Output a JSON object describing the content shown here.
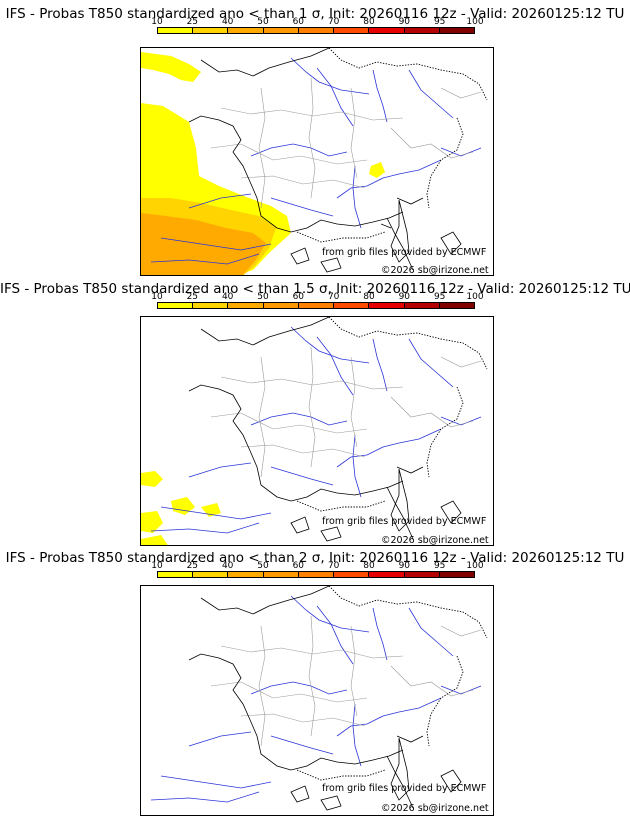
{
  "scale": {
    "ticks": [
      "10",
      "25",
      "40",
      "50",
      "60",
      "70",
      "80",
      "90",
      "95",
      "100"
    ],
    "colors": [
      "#ffff00",
      "#ffd400",
      "#ffaa00",
      "#ff9900",
      "#ff7f00",
      "#ff4c00",
      "#e60000",
      "#b30000",
      "#800000"
    ]
  },
  "panels": [
    {
      "title": "IFS - Probas T850  standardized ano < than 1 σ, Init: 20260116 12z - Valid: 20260125:12 TU",
      "source": "from grib files provided by ECMWF",
      "copyright": "©2026 sb@irizone.net"
    },
    {
      "title": "IFS - Probas T850  standardized ano < than 1.5 σ, Init: 20260116 12z - Valid: 20260125:12 TU",
      "source": "from grib files provided by ECMWF",
      "copyright": "©2026 sb@irizone.net"
    },
    {
      "title": "IFS - Probas T850  standardized ano < than 2 σ, Init: 20260116 12z - Valid: 20260125:12 TU",
      "source": "from grib files provided by ECMWF",
      "copyright": "©2026 sb@irizone.net"
    }
  ]
}
